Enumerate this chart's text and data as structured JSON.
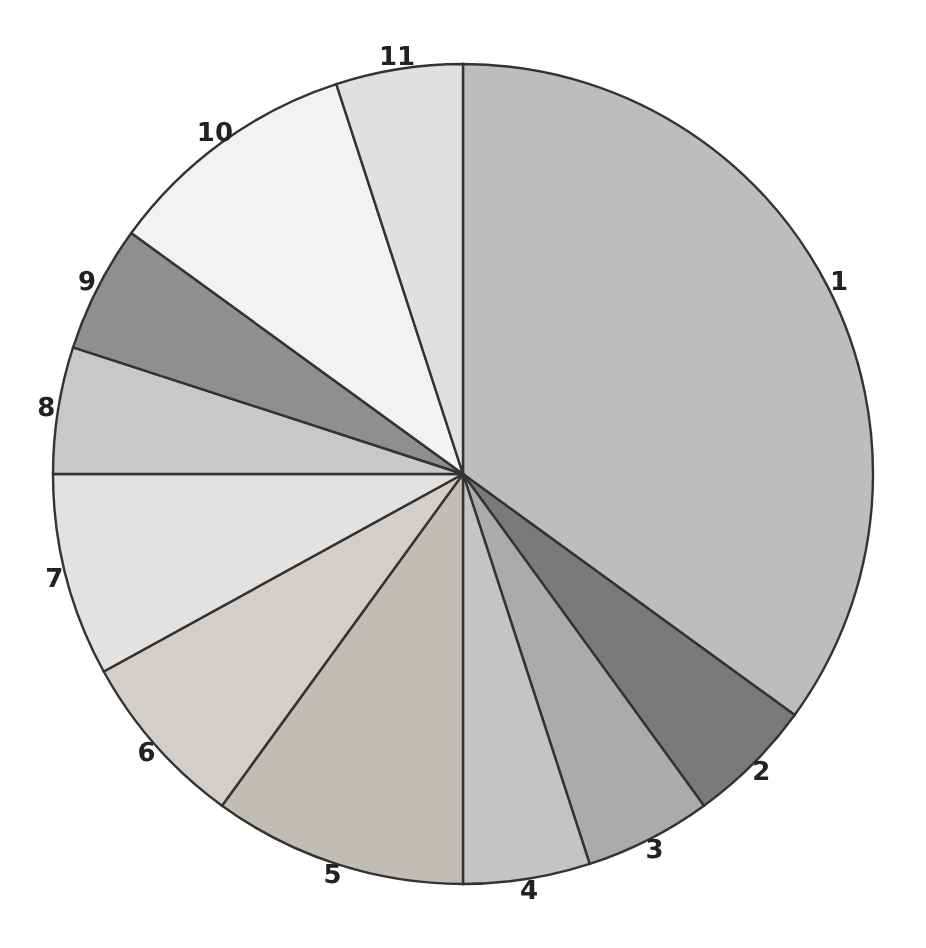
{
  "chart_data": {
    "type": "pie",
    "categories": [
      "1",
      "2",
      "3",
      "4",
      "5",
      "6",
      "7",
      "8",
      "9",
      "10",
      "11"
    ],
    "values": [
      35,
      5,
      5,
      5,
      10,
      7,
      8,
      5,
      5,
      10,
      5
    ],
    "colors": [
      "#bdbdbd",
      "#7a7a7a",
      "#ababab",
      "#c4c4c4",
      "#c2bcb6",
      "#d3ceca",
      "#e2e2e2",
      "#c8c8c8",
      "#8f8f8f",
      "#f2f2f2",
      "#e0e0e0"
    ]
  }
}
